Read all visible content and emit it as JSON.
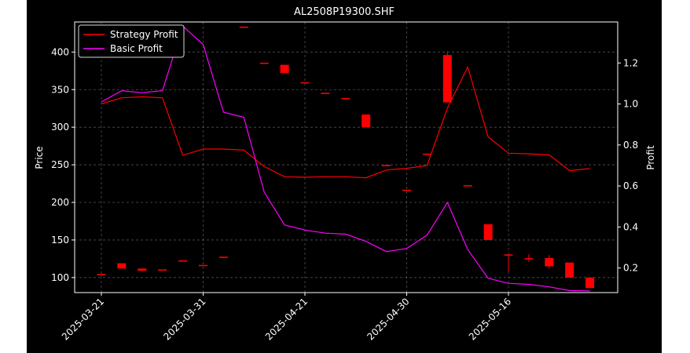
{
  "chart_data": {
    "type": "candlestick+line",
    "title": "AL2508P19300.SHF",
    "ylabel_left": "Price",
    "ylabel_right": "Profit",
    "ylim_left": [
      80,
      440
    ],
    "ylim_right": [
      0.08,
      1.4
    ],
    "grid": true,
    "legend_position": "top-left",
    "xtick_labels": [
      "2025-03-21",
      "2025-03-31",
      "2025-04-21",
      "2025-04-30",
      "2025-05-16"
    ],
    "xtick_index": [
      0,
      5,
      10,
      15,
      20
    ],
    "yticks_left": [
      100,
      150,
      200,
      250,
      300,
      350,
      400
    ],
    "yticks_right": [
      0.2,
      0.4,
      0.6,
      0.8,
      1.0,
      1.2
    ],
    "candles": [
      {
        "open": 104,
        "close": 104,
        "high": 104,
        "low": 104
      },
      {
        "open": 112,
        "close": 119,
        "high": 119,
        "low": 112
      },
      {
        "open": 109,
        "close": 112,
        "high": 112,
        "low": 109
      },
      {
        "open": 110,
        "close": 110,
        "high": 110,
        "low": 110
      },
      {
        "open": 122,
        "close": 122,
        "high": 122,
        "low": 122
      },
      {
        "open": 116,
        "close": 116,
        "high": 116,
        "low": 116
      },
      {
        "open": 127,
        "close": 127,
        "high": 127,
        "low": 127
      },
      {
        "open": 433,
        "close": 433,
        "high": 433,
        "low": 433
      },
      {
        "open": 385,
        "close": 385,
        "high": 385,
        "low": 385
      },
      {
        "open": 372,
        "close": 383,
        "high": 383,
        "low": 372
      },
      {
        "open": 359,
        "close": 359,
        "high": 359,
        "low": 359
      },
      {
        "open": 345,
        "close": 345,
        "high": 345,
        "low": 345
      },
      {
        "open": 338,
        "close": 338,
        "high": 338,
        "low": 338
      },
      {
        "open": 300,
        "close": 317,
        "high": 317,
        "low": 300
      },
      {
        "open": 249,
        "close": 249,
        "high": 249,
        "low": 249
      },
      {
        "open": 216,
        "close": 216,
        "high": 216,
        "low": 216
      },
      {
        "open": 264,
        "close": 264,
        "high": 264,
        "low": 264
      },
      {
        "open": 333,
        "close": 396,
        "high": 401,
        "low": 333
      },
      {
        "open": 222,
        "close": 222,
        "high": 222,
        "low": 222
      },
      {
        "open": 150,
        "close": 171,
        "high": 171,
        "low": 150
      },
      {
        "open": 130,
        "close": 130,
        "high": 130,
        "low": 108
      },
      {
        "open": 125,
        "close": 125,
        "high": 131,
        "low": 121
      },
      {
        "open": 115,
        "close": 126,
        "high": 130,
        "low": 112
      },
      {
        "open": 100,
        "close": 120,
        "high": 120,
        "low": 100
      },
      {
        "open": 86,
        "close": 100,
        "high": 100,
        "low": 86
      }
    ],
    "series": [
      {
        "name": "Strategy Profit",
        "color": "#ff0000",
        "values": [
          1.0,
          1.03,
          1.035,
          1.03,
          0.75,
          0.78,
          0.78,
          0.775,
          0.695,
          0.645,
          0.643,
          0.645,
          0.645,
          0.64,
          0.678,
          0.686,
          0.7,
          0.98,
          1.18,
          0.84,
          0.76,
          0.757,
          0.752,
          0.675,
          0.685
        ]
      },
      {
        "name": "Basic Profit",
        "color": "#ff00ff",
        "values": [
          1.01,
          1.065,
          1.055,
          1.065,
          1.38,
          1.29,
          0.96,
          0.935,
          0.57,
          0.41,
          0.385,
          0.37,
          0.365,
          0.33,
          0.28,
          0.295,
          0.36,
          0.52,
          0.29,
          0.15,
          0.125,
          0.12,
          0.108,
          0.09,
          0.088
        ]
      }
    ],
    "candle_up_color": "#ff0000",
    "candle_down_color": "#008000"
  }
}
